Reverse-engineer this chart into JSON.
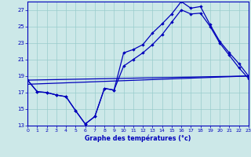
{
  "title": "Graphe des températures (°c)",
  "bg_color": "#cce8e8",
  "grid_color": "#99cccc",
  "line_color": "#0000bb",
  "xlim": [
    0,
    23
  ],
  "ylim": [
    13,
    28
  ],
  "yticks": [
    13,
    15,
    17,
    19,
    21,
    23,
    25,
    27
  ],
  "xticks": [
    0,
    1,
    2,
    3,
    4,
    5,
    6,
    7,
    8,
    9,
    10,
    11,
    12,
    13,
    14,
    15,
    16,
    17,
    18,
    19,
    20,
    21,
    22,
    23
  ],
  "line1_x": [
    0,
    1,
    2,
    3,
    4,
    5,
    6,
    7,
    8,
    9,
    10,
    11,
    12,
    13,
    14,
    15,
    16,
    17,
    18,
    19,
    20,
    21,
    22,
    23
  ],
  "line1_y": [
    18.5,
    17.1,
    17.0,
    16.7,
    16.5,
    14.8,
    13.2,
    14.1,
    17.5,
    17.3,
    21.8,
    22.2,
    22.8,
    24.2,
    25.3,
    26.5,
    28.0,
    27.2,
    27.4,
    25.2,
    23.2,
    21.8,
    20.5,
    19.0
  ],
  "line2_x": [
    0,
    1,
    2,
    3,
    4,
    5,
    6,
    7,
    8,
    9,
    10,
    11,
    12,
    13,
    14,
    15,
    16,
    17,
    18,
    19,
    20,
    21,
    22,
    23
  ],
  "line2_y": [
    18.5,
    17.1,
    17.0,
    16.7,
    16.5,
    14.8,
    13.2,
    14.1,
    17.5,
    17.3,
    20.2,
    21.0,
    21.8,
    22.8,
    24.0,
    25.5,
    27.0,
    26.5,
    26.6,
    25.0,
    23.0,
    21.5,
    20.0,
    18.7
  ],
  "line3_x": [
    0,
    23
  ],
  "line3_y": [
    18.5,
    19.0
  ],
  "line4_x": [
    0,
    23
  ],
  "line4_y": [
    18.0,
    19.0
  ]
}
